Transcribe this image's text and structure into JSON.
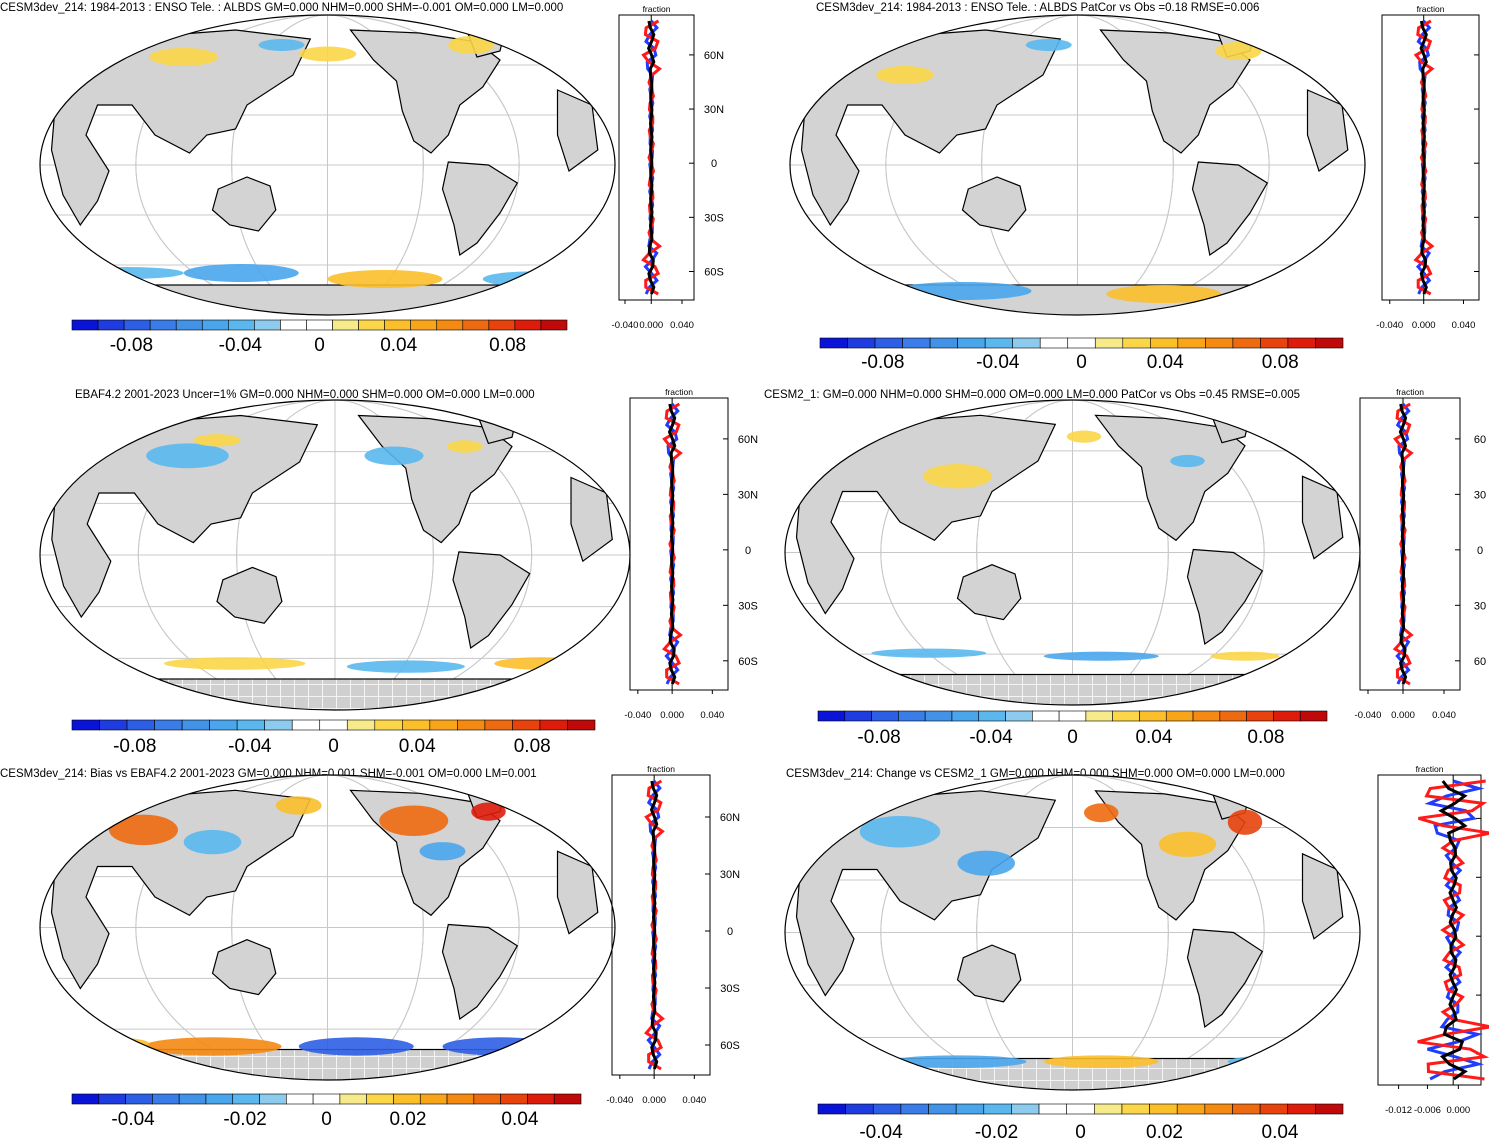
{
  "colors": {
    "ocean": "#ffffff",
    "land": "#d3d3d3",
    "coast": "#000000",
    "grid": "#c8c8c8",
    "series_blue": "#1f3cff",
    "series_red": "#ff1a1a",
    "series_black": "#000000",
    "scale": [
      "#0a14d8",
      "#1e3ce0",
      "#2d5fe6",
      "#3a7ce8",
      "#4292e8",
      "#4aa6ec",
      "#5ab8ef",
      "#8ccbed",
      "#ffffff",
      "#ffffff",
      "#f6ea8a",
      "#fbd648",
      "#fbbf2a",
      "#f9a51a",
      "#f48a12",
      "#ee6a10",
      "#e8420d",
      "#de1c0c",
      "#c00a0a"
    ]
  },
  "panels": [
    {
      "id": "p1",
      "title": "CESM3dev_214: 1984-2013 : ENSO Tele. : ALBDS GM=0.000 NHM=0.000 SHM=-0.001 OM=0.000 LM=0.000",
      "profile_title": "fraction",
      "lat_labels": [
        "60N",
        "30N",
        "0",
        "30S",
        "60S"
      ],
      "profile_ticks": [
        "-0.040",
        "0.000",
        "0.040"
      ],
      "colorbar_labels": [
        "-0.08",
        "-0.04",
        "0",
        "0.04",
        "0.08"
      ],
      "hatch": false
    },
    {
      "id": "p2",
      "title": "CESM3dev_214: 1984-2013 : ENSO Tele. : ALBDS PatCor vs Obs =0.18 RMSE=0.006",
      "profile_title": "fraction",
      "lat_labels": [],
      "profile_ticks": [
        "-0.040",
        "0.000",
        "0.040"
      ],
      "colorbar_labels": [
        "-0.08",
        "-0.04",
        "0",
        "0.04",
        "0.08"
      ],
      "hatch": false
    },
    {
      "id": "p3",
      "title": "EBAF4.2 2001-2023 Uncer=1% GM=0.000 NHM=0.000 SHM=0.000 OM=0.000 LM=0.000",
      "profile_title": "fraction",
      "lat_labels": [
        "60N",
        "30N",
        "0",
        "30S",
        "60S"
      ],
      "profile_ticks": [
        "-0.040",
        "0.000",
        "0.040"
      ],
      "colorbar_labels": [
        "-0.08",
        "-0.04",
        "0",
        "0.04",
        "0.08"
      ],
      "hatch": true
    },
    {
      "id": "p4",
      "title": "CESM2_1: GM=0.000 NHM=0.000 SHM=0.000 OM=0.000 LM=0.000 PatCor vs Obs =0.45 RMSE=0.005",
      "profile_title": "fraction",
      "lat_labels": [
        "60",
        "30",
        "0",
        "30",
        "60"
      ],
      "profile_ticks": [
        "-0.040",
        "0.000",
        "0.040"
      ],
      "colorbar_labels": [
        "-0.08",
        "-0.04",
        "0",
        "0.04",
        "0.08"
      ],
      "hatch": true
    },
    {
      "id": "p5",
      "title": "CESM3dev_214: Bias vs EBAF4.2 2001-2023 GM=0.000 NHM=0.001 SHM=-0.001 OM=0.000 LM=0.001",
      "profile_title": "fraction",
      "lat_labels": [
        "60N",
        "30N",
        "0",
        "30S",
        "60S"
      ],
      "profile_ticks": [
        "-0.040",
        "0.000",
        "0.040"
      ],
      "colorbar_labels": [
        "-0.04",
        "-0.02",
        "0",
        "0.02",
        "0.04"
      ],
      "hatch": true
    },
    {
      "id": "p6",
      "title": "CESM3dev_214: Change vs CESM2_1 GM=0.000 NHM=0.000 SHM=0.000 OM=0.000 LM=0.000",
      "profile_title": "fraction",
      "lat_labels": [],
      "profile_ticks": [
        "-0.012",
        "-0.006",
        "0.000"
      ],
      "colorbar_labels": [
        "-0.04",
        "-0.02",
        "0",
        "0.02",
        "0.04"
      ],
      "hatch": true
    }
  ]
}
